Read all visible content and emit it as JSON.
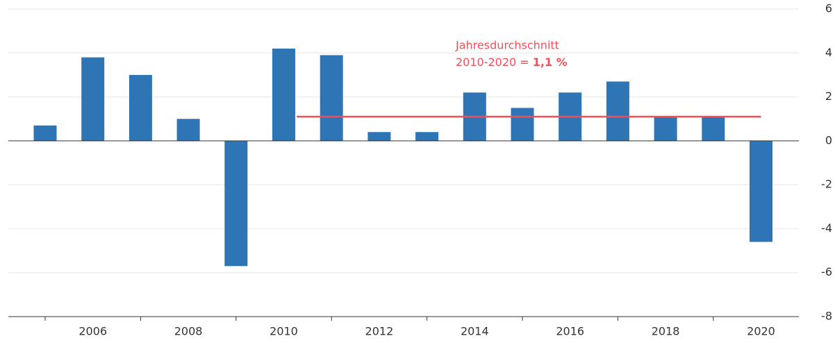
{
  "chart_data": {
    "type": "bar",
    "categories": [
      null,
      "2006",
      null,
      "2008",
      null,
      "2010",
      null,
      "2012",
      null,
      "2014",
      null,
      "2016",
      null,
      "2018",
      null,
      "2020"
    ],
    "values": [
      0.7,
      3.8,
      3.0,
      1.0,
      -5.7,
      4.2,
      3.9,
      0.4,
      0.4,
      2.2,
      1.5,
      2.2,
      2.7,
      1.1,
      1.1,
      -4.6
    ],
    "color": "#2e75b6",
    "ylim": [
      -8,
      6
    ],
    "yticks": [
      -8,
      -6,
      -4,
      -2,
      0,
      2,
      4,
      6
    ],
    "grid": true,
    "average": {
      "value": 1.1,
      "label": "1,1 %",
      "line1": "Jahresdurchschnitt",
      "line2": "2010-2020 =",
      "color": "#f0505a"
    }
  }
}
